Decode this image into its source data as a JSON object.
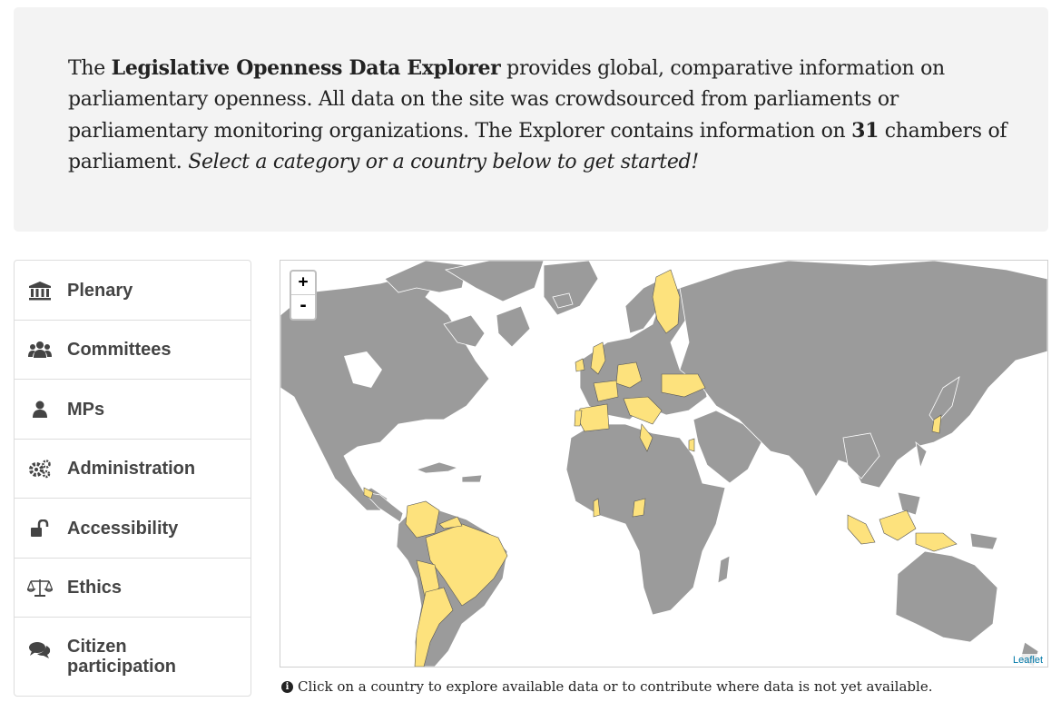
{
  "intro": {
    "lead": "The ",
    "brand": "Legislative Openness Data Explorer",
    "part1": " provides global, comparative information on parliamentary openness. All data on the site was crowdsourced from parliaments or parliamentary monitoring organizations. The Explorer contains information on ",
    "count": "31",
    "part2": " chambers of parliament. ",
    "cta": "Select a category or a country below to get started!"
  },
  "categories": [
    {
      "label": "Plenary",
      "icon": "building-columns-icon"
    },
    {
      "label": "Committees",
      "icon": "users-icon"
    },
    {
      "label": "MPs",
      "icon": "user-icon"
    },
    {
      "label": "Administration",
      "icon": "gears-icon"
    },
    {
      "label": "Accessibility",
      "icon": "unlock-icon"
    },
    {
      "label": "Ethics",
      "icon": "balance-scale-icon"
    },
    {
      "label": "Citizen participation",
      "icon": "comments-icon"
    }
  ],
  "map": {
    "zoom_in": "+",
    "zoom_out": "-",
    "attribution": "Leaflet",
    "colors": {
      "land": "#9b9b9b",
      "highlight": "#fde27d",
      "border": "#ffffff",
      "water": "#ffffff"
    }
  },
  "hint": {
    "text": "Click on a country to explore available data or to contribute where data is not yet available."
  }
}
